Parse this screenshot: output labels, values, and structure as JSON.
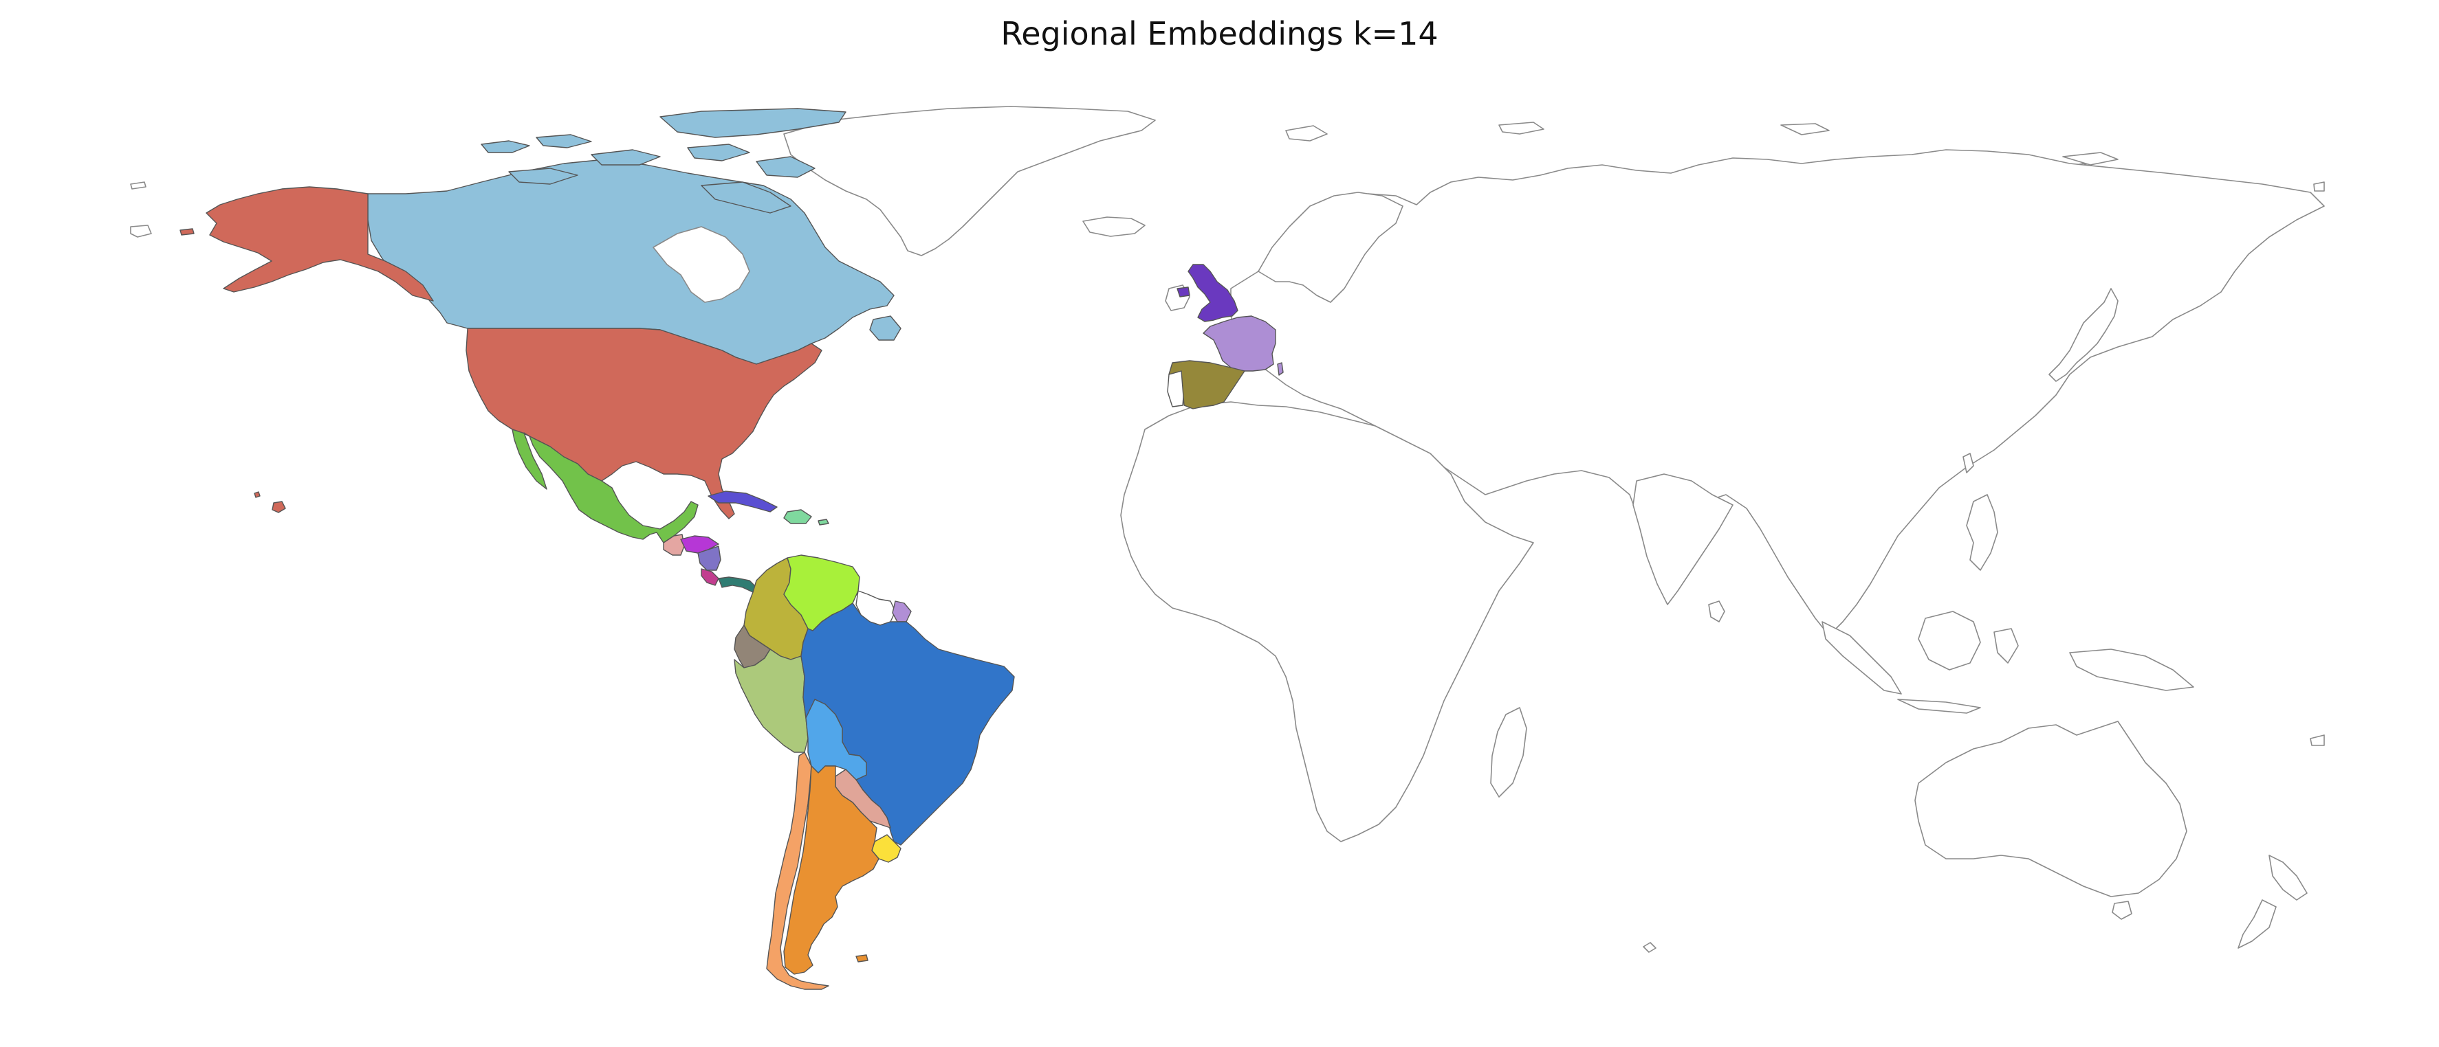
{
  "title": "Regional Embeddings k=14",
  "colors": {
    "usa": "#d0695a",
    "alaska": "#d0695a",
    "hawaii": "#d0695a",
    "canada": "#8fc1db",
    "mexico": "#72c24a",
    "cuba": "#5a4fd2",
    "hispaniola": "#7fd99e",
    "guatemala": "#e4a6a2",
    "honduras": "#b637d6",
    "nicaragua": "#7f73c6",
    "costa_rica": "#c23e8f",
    "panama": "#2f7c72",
    "colombia": "#bcb33b",
    "venezuela": "#a8f03a",
    "guyana_suriname": "#ffffff",
    "french_guiana": "#b18fd6",
    "ecuador": "#928577",
    "peru": "#acc97b",
    "brazil": "#3175c9",
    "bolivia": "#51a6ea",
    "paraguay": "#e0a598",
    "uruguay": "#fbe03a",
    "chile": "#f4a266",
    "argentina": "#e99131",
    "uk": "#6a39bf",
    "france": "#ad8ed4",
    "spain": "#95883a",
    "portugal": "#ffffff",
    "default_fill": "#ffffff",
    "default_stroke": "#8a8a8a"
  }
}
